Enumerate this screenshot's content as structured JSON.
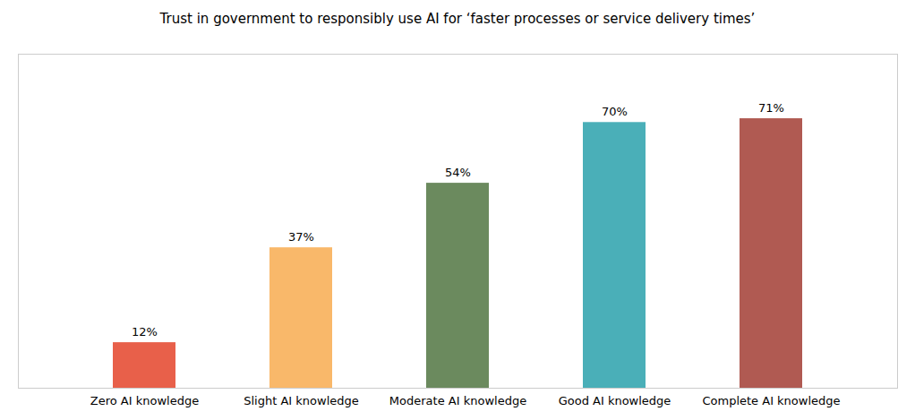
{
  "chart_data": {
    "type": "bar",
    "title": "Trust in government to responsibly use AI for ‘faster processes or service delivery times’",
    "categories": [
      "Zero AI knowledge",
      "Slight AI knowledge",
      "Moderate AI knowledge",
      "Good AI knowledge",
      "Complete AI knowledge"
    ],
    "values": [
      12,
      37,
      54,
      70,
      71
    ],
    "value_labels": [
      "12%",
      "37%",
      "54%",
      "70%",
      "71%"
    ],
    "data_labels": true,
    "colors": [
      "#E8604A",
      "#F9B86A",
      "#6B8A5E",
      "#4AAFB8",
      "#B05A52"
    ],
    "ylim": [
      0,
      88
    ],
    "tick_labels": "x"
  }
}
